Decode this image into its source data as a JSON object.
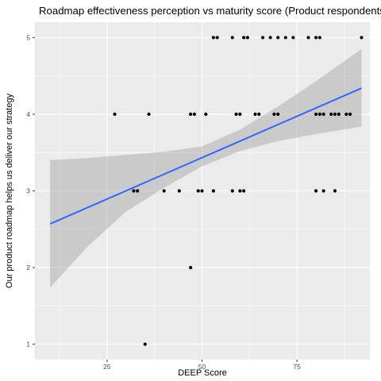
{
  "chart_data": {
    "type": "scatter",
    "title": "Roadmap effectiveness perception vs maturity score (Product respondents)",
    "xlabel": "DEEP Score",
    "ylabel": "Our product roadmap helps us deliver our strategy",
    "xlim": [
      6.0,
      94.2
    ],
    "ylim": [
      0.8,
      5.2
    ],
    "x_ticks": [
      25,
      50,
      75
    ],
    "y_ticks": [
      1,
      2,
      3,
      4,
      5
    ],
    "grid": true,
    "legend": "none",
    "points": [
      {
        "x": 35,
        "y": 1
      },
      {
        "x": 47,
        "y": 2
      },
      {
        "x": 32,
        "y": 3
      },
      {
        "x": 33,
        "y": 3
      },
      {
        "x": 40,
        "y": 3
      },
      {
        "x": 44,
        "y": 3
      },
      {
        "x": 49,
        "y": 3
      },
      {
        "x": 50,
        "y": 3
      },
      {
        "x": 53,
        "y": 3
      },
      {
        "x": 58,
        "y": 3
      },
      {
        "x": 60,
        "y": 3
      },
      {
        "x": 61,
        "y": 3
      },
      {
        "x": 80,
        "y": 3
      },
      {
        "x": 82,
        "y": 3
      },
      {
        "x": 85,
        "y": 3
      },
      {
        "x": 27,
        "y": 4
      },
      {
        "x": 36,
        "y": 4
      },
      {
        "x": 47,
        "y": 4
      },
      {
        "x": 48,
        "y": 4
      },
      {
        "x": 51,
        "y": 4
      },
      {
        "x": 59,
        "y": 4
      },
      {
        "x": 60,
        "y": 4
      },
      {
        "x": 64,
        "y": 4
      },
      {
        "x": 65,
        "y": 4
      },
      {
        "x": 69,
        "y": 4
      },
      {
        "x": 70,
        "y": 4
      },
      {
        "x": 80,
        "y": 4
      },
      {
        "x": 81,
        "y": 4
      },
      {
        "x": 82,
        "y": 4
      },
      {
        "x": 84,
        "y": 4
      },
      {
        "x": 85,
        "y": 4
      },
      {
        "x": 86,
        "y": 4
      },
      {
        "x": 88,
        "y": 4
      },
      {
        "x": 89,
        "y": 4
      },
      {
        "x": 53,
        "y": 5
      },
      {
        "x": 54,
        "y": 5
      },
      {
        "x": 58,
        "y": 5
      },
      {
        "x": 61,
        "y": 5
      },
      {
        "x": 62,
        "y": 5
      },
      {
        "x": 66,
        "y": 5
      },
      {
        "x": 68,
        "y": 5
      },
      {
        "x": 70,
        "y": 5
      },
      {
        "x": 72,
        "y": 5
      },
      {
        "x": 74,
        "y": 5
      },
      {
        "x": 78,
        "y": 5
      },
      {
        "x": 80,
        "y": 5
      },
      {
        "x": 81,
        "y": 5
      },
      {
        "x": 92,
        "y": 5
      }
    ],
    "trend_line": {
      "method": "linear",
      "color": "#3366ff",
      "x_range": [
        10,
        92
      ],
      "fit": [
        {
          "x": 10,
          "y": 2.57
        },
        {
          "x": 92,
          "y": 4.34
        }
      ],
      "confidence_band": {
        "color": "#999999",
        "upper": [
          {
            "x": 10,
            "y": 3.4
          },
          {
            "x": 20,
            "y": 3.43
          },
          {
            "x": 30,
            "y": 3.47
          },
          {
            "x": 40,
            "y": 3.51
          },
          {
            "x": 50,
            "y": 3.58
          },
          {
            "x": 60,
            "y": 3.8
          },
          {
            "x": 70,
            "y": 4.1
          },
          {
            "x": 80,
            "y": 4.43
          },
          {
            "x": 92,
            "y": 4.85
          }
        ],
        "lower": [
          {
            "x": 10,
            "y": 1.74
          },
          {
            "x": 20,
            "y": 2.28
          },
          {
            "x": 30,
            "y": 2.73
          },
          {
            "x": 40,
            "y": 3.04
          },
          {
            "x": 50,
            "y": 3.32
          },
          {
            "x": 60,
            "y": 3.52
          },
          {
            "x": 70,
            "y": 3.65
          },
          {
            "x": 80,
            "y": 3.74
          },
          {
            "x": 92,
            "y": 3.84
          }
        ]
      }
    },
    "colors": {
      "panel_background": "#ebebeb",
      "grid_major": "#ffffff",
      "point": "#000000"
    }
  }
}
